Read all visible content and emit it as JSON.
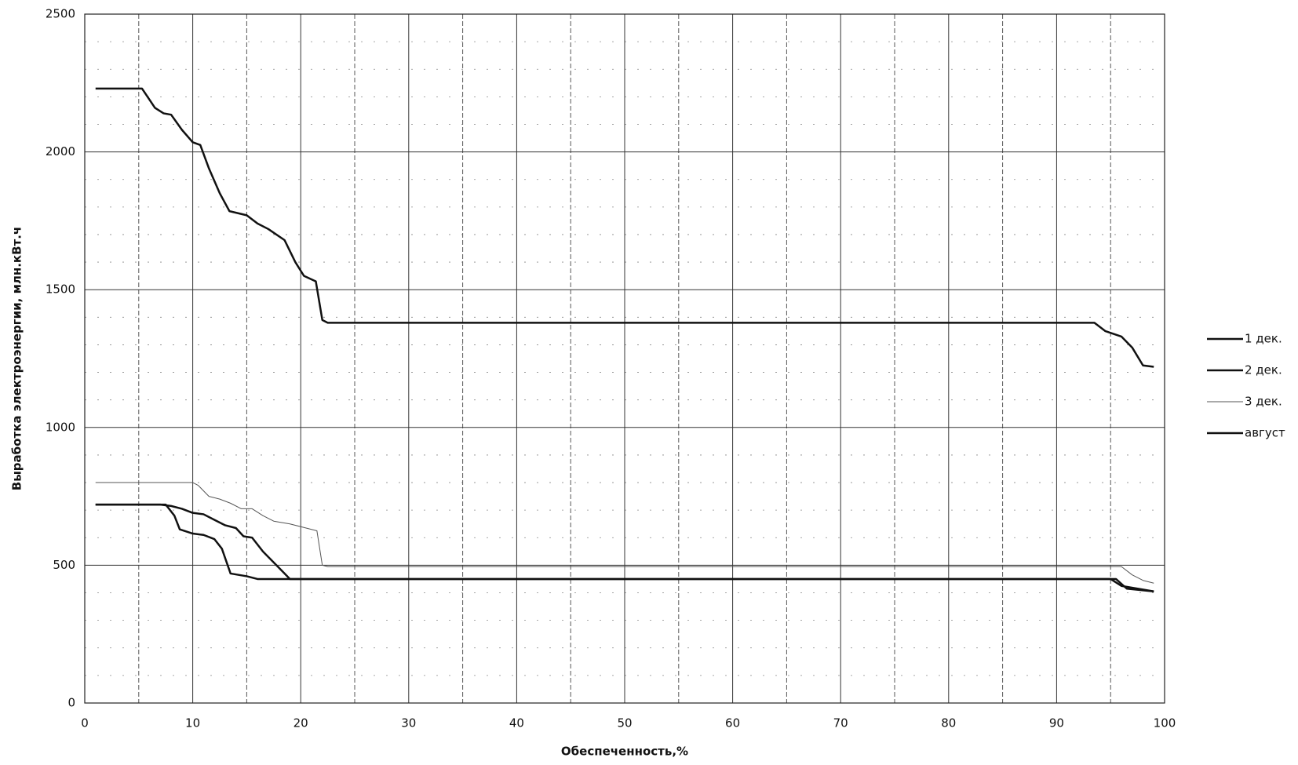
{
  "chart_data": {
    "type": "line",
    "x_label": "Обеспеченность,%",
    "y_label": "Выработка электроэнергии, млн.кВт.ч",
    "xlim": [
      0,
      100
    ],
    "xticks": [
      0,
      10,
      20,
      30,
      40,
      50,
      60,
      70,
      80,
      90,
      100
    ],
    "x_minor_ticks": [
      5,
      15,
      25,
      35,
      45,
      55,
      65,
      75,
      85,
      95
    ],
    "ylim": [
      0,
      2500
    ],
    "yticks": [
      0,
      500,
      1000,
      1500,
      2000,
      2500
    ],
    "y_minor_ticks": [
      100,
      200,
      300,
      400,
      600,
      700,
      800,
      900,
      1100,
      1200,
      1300,
      1400,
      1600,
      1700,
      1800,
      1900,
      2100,
      2200,
      2300,
      2400
    ],
    "grid": true,
    "legend": "right",
    "series": [
      {
        "name": "1 дек.",
        "color": "#111111",
        "width": 2.5,
        "x": [
          1,
          7.5,
          8.3,
          8.8,
          10,
          11,
          12,
          12.7,
          13.5,
          15,
          16,
          95.5,
          96.5,
          99
        ],
        "values": [
          720,
          720,
          680,
          630,
          615,
          610,
          595,
          560,
          470,
          460,
          450,
          450,
          415,
          405
        ]
      },
      {
        "name": "2 дек.",
        "color": "#111111",
        "width": 2.5,
        "x": [
          1,
          7,
          8,
          9,
          10,
          11,
          12,
          13,
          14,
          14.7,
          15.5,
          16.5,
          17.5,
          18.5,
          19,
          95,
          96,
          99
        ],
        "values": [
          720,
          720,
          715,
          705,
          690,
          685,
          665,
          645,
          635,
          605,
          600,
          550,
          510,
          470,
          450,
          450,
          425,
          405
        ]
      },
      {
        "name": "3 дек.",
        "color": "#555555",
        "width": 1,
        "x": [
          1,
          10,
          10.5,
          11.5,
          12.5,
          13.5,
          14.5,
          15.5,
          16.5,
          17.5,
          19,
          20,
          21.5,
          22,
          22.5,
          96,
          97,
          98,
          99
        ],
        "values": [
          800,
          800,
          790,
          750,
          740,
          725,
          705,
          705,
          680,
          660,
          650,
          640,
          625,
          500,
          495,
          495,
          465,
          445,
          435
        ]
      },
      {
        "name": "август",
        "color": "#111111",
        "width": 2.5,
        "x": [
          1,
          5.3,
          6.5,
          7.3,
          8,
          9,
          10,
          10.7,
          11.5,
          12.5,
          13.4,
          15,
          16,
          17,
          18.5,
          19.5,
          20.3,
          21.4,
          22,
          22.5,
          93.5,
          94.5,
          96,
          97,
          98,
          99
        ],
        "values": [
          2230,
          2230,
          2160,
          2140,
          2135,
          2080,
          2035,
          2025,
          1940,
          1850,
          1785,
          1770,
          1740,
          1720,
          1680,
          1600,
          1550,
          1530,
          1390,
          1380,
          1380,
          1350,
          1330,
          1290,
          1225,
          1220
        ]
      }
    ]
  }
}
